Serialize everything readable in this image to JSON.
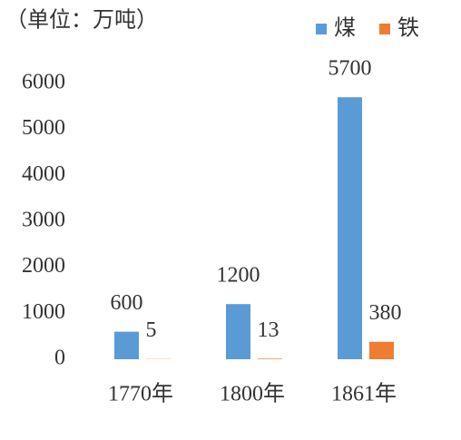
{
  "chart_data": {
    "type": "bar",
    "title": "（单位：万吨）",
    "categories": [
      "1770年",
      "1800年",
      "1861年"
    ],
    "series": [
      {
        "name": "煤",
        "color": "#5b9bd5",
        "values": [
          600,
          1200,
          5700
        ]
      },
      {
        "name": "铁",
        "color": "#ed7d31",
        "values": [
          5,
          13,
          380
        ]
      }
    ],
    "ylim": [
      0,
      6000
    ],
    "yticks": [
      0,
      1000,
      2000,
      3000,
      4000,
      5000,
      6000
    ],
    "grid": false,
    "legend": "top-right"
  }
}
